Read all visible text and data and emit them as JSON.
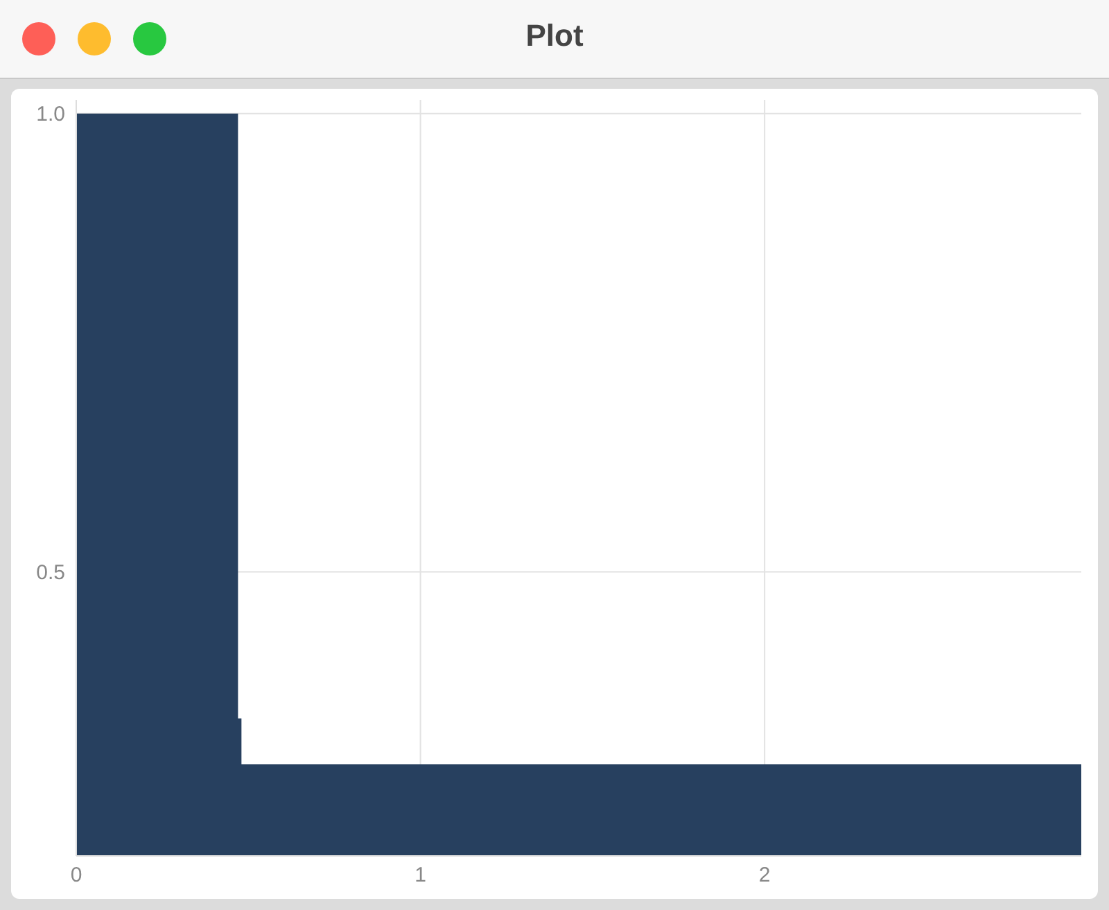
{
  "chart_data": {
    "type": "area",
    "title": "Plot",
    "x": [
      0,
      0.47,
      0.48,
      2.92
    ],
    "series": [
      {
        "color": "#27405f",
        "values": [
          1.0,
          0.34,
          0.29,
          0.29
        ]
      }
    ],
    "xlim": [
      0,
      2.92
    ],
    "xticks": [
      0,
      1,
      2
    ],
    "ylim": [
      0.19,
      1.015
    ],
    "yticks": [
      0.5,
      {
        "value": 1,
        "label": "1.0"
      }
    ],
    "grid": true,
    "legend": false
  }
}
